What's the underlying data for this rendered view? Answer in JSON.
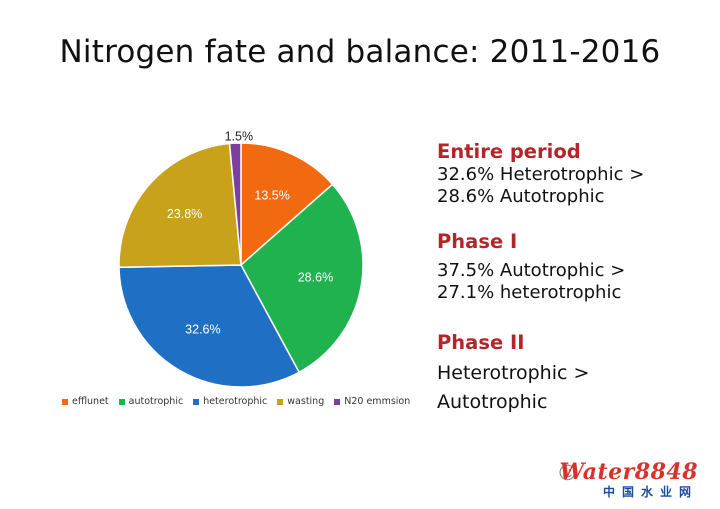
{
  "title": "Nitrogen fate and balance: 2011-2016",
  "chart_data": {
    "type": "pie",
    "categories": [
      "efflunet",
      "autotrophic",
      "heterotrophic",
      "wasting",
      "N20 emmsion"
    ],
    "values": [
      13.5,
      28.6,
      32.6,
      23.8,
      1.5
    ],
    "labels": [
      "13.5%",
      "28.6%",
      "32.6%",
      "23.8%",
      "1.5%"
    ],
    "colors": [
      "#f26a10",
      "#1fb24f",
      "#1f6fc4",
      "#c8a21a",
      "#7a3fa0"
    ],
    "legend_position": "bottom"
  },
  "notes": {
    "entire": {
      "heading": "Entire period",
      "lines": [
        "32.6% Heterotrophic >",
        "28.6% Autotrophic"
      ]
    },
    "phase1": {
      "heading": "Phase I",
      "lines": [
        "37.5% Autotrophic >",
        "27.1% heterotrophic"
      ]
    },
    "phase2": {
      "heading": "Phase II",
      "lines": [
        "Heterotrophic >",
        "Autotrophic"
      ]
    }
  },
  "watermark": {
    "brand": "Water8848",
    "sub": "中国水业网"
  }
}
